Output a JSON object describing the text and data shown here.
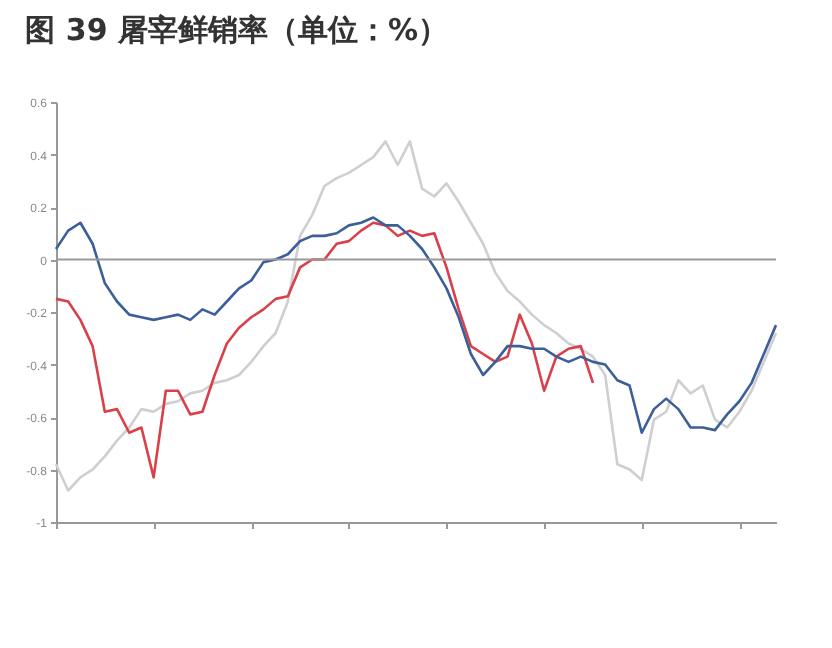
{
  "chart_data": {
    "type": "line",
    "title": "图 39 屠宰鲜销率（单位：%）",
    "categories": [
      null,
      null,
      null,
      null,
      null,
      null,
      null,
      null,
      null,
      null,
      null,
      null,
      null,
      null,
      null,
      null,
      null,
      null,
      null,
      null,
      null,
      null,
      null,
      null,
      null,
      null,
      null,
      null,
      null,
      null,
      null,
      null,
      null,
      null,
      null,
      null,
      null,
      null,
      null,
      null,
      null,
      null,
      null,
      null,
      null,
      null,
      null,
      null,
      null,
      null,
      null,
      null,
      null,
      null,
      null,
      null,
      null,
      null,
      null,
      null
    ],
    "series": [
      {
        "color": "#cfcfcf",
        "values": [
          -0.78,
          -0.88,
          -0.83,
          -0.8,
          -0.75,
          -0.69,
          -0.64,
          -0.57,
          -0.58,
          -0.55,
          -0.54,
          -0.51,
          -0.5,
          -0.47,
          -0.46,
          -0.44,
          -0.39,
          -0.33,
          -0.28,
          -0.16,
          0.09,
          0.17,
          0.28,
          0.31,
          0.33,
          0.36,
          0.39,
          0.45,
          0.36,
          0.45,
          0.27,
          0.24,
          0.29,
          0.22,
          0.14,
          0.06,
          -0.05,
          -0.12,
          -0.16,
          -0.21,
          -0.25,
          -0.28,
          -0.32,
          -0.34,
          -0.37,
          -0.44,
          -0.78,
          -0.8,
          -0.84,
          -0.61,
          -0.58,
          -0.46,
          -0.51,
          -0.48,
          -0.61,
          -0.64,
          -0.58,
          -0.5,
          -0.39,
          -0.28
        ]
      },
      {
        "color": "#d9404a",
        "values": [
          -0.15,
          -0.16,
          -0.23,
          -0.33,
          -0.58,
          -0.57,
          -0.66,
          -0.64,
          -0.83,
          -0.5,
          -0.5,
          -0.59,
          -0.58,
          -0.44,
          -0.32,
          -0.26,
          -0.22,
          -0.19,
          -0.15,
          -0.14,
          -0.03,
          0,
          0,
          0.06,
          0.07,
          0.11,
          0.14,
          0.13,
          0.09,
          0.11,
          0.09,
          0.1,
          -0.03,
          -0.19,
          -0.33,
          -0.36,
          -0.39,
          -0.37,
          -0.21,
          -0.32,
          -0.5,
          -0.37,
          -0.34,
          -0.33,
          -0.47,
          null,
          null,
          null,
          null,
          null,
          null,
          null,
          null,
          null,
          null,
          null,
          null,
          null,
          null,
          null
        ]
      },
      {
        "color": "#3c5f9a",
        "values": [
          0.04,
          0.11,
          0.14,
          0.06,
          -0.09,
          -0.16,
          -0.21,
          -0.22,
          -0.23,
          -0.22,
          -0.21,
          -0.23,
          -0.19,
          -0.21,
          -0.16,
          -0.11,
          -0.08,
          -0.01,
          0,
          0.02,
          0.07,
          0.09,
          0.09,
          0.1,
          0.13,
          0.14,
          0.16,
          0.13,
          0.13,
          0.09,
          0.04,
          -0.03,
          -0.11,
          -0.22,
          -0.36,
          -0.44,
          -0.39,
          -0.33,
          -0.33,
          -0.34,
          -0.34,
          -0.37,
          -0.39,
          -0.37,
          -0.39,
          -0.4,
          -0.46,
          -0.48,
          -0.66,
          -0.57,
          -0.53,
          -0.57,
          -0.64,
          -0.64,
          -0.65,
          -0.59,
          -0.54,
          -0.47,
          -0.36,
          -0.25
        ]
      }
    ],
    "ylim": [
      -1,
      0.6
    ],
    "yticks": [
      -1,
      -0.8,
      -0.6,
      -0.4,
      -0.2,
      0,
      0.2,
      0.4,
      0.6
    ],
    "ref_lines": [
      {
        "axis": "y",
        "value": 0,
        "color": "#999999"
      }
    ],
    "grid": false,
    "legend": false,
    "tick_labels": "y",
    "marker": "none",
    "line_style": "solid"
  }
}
